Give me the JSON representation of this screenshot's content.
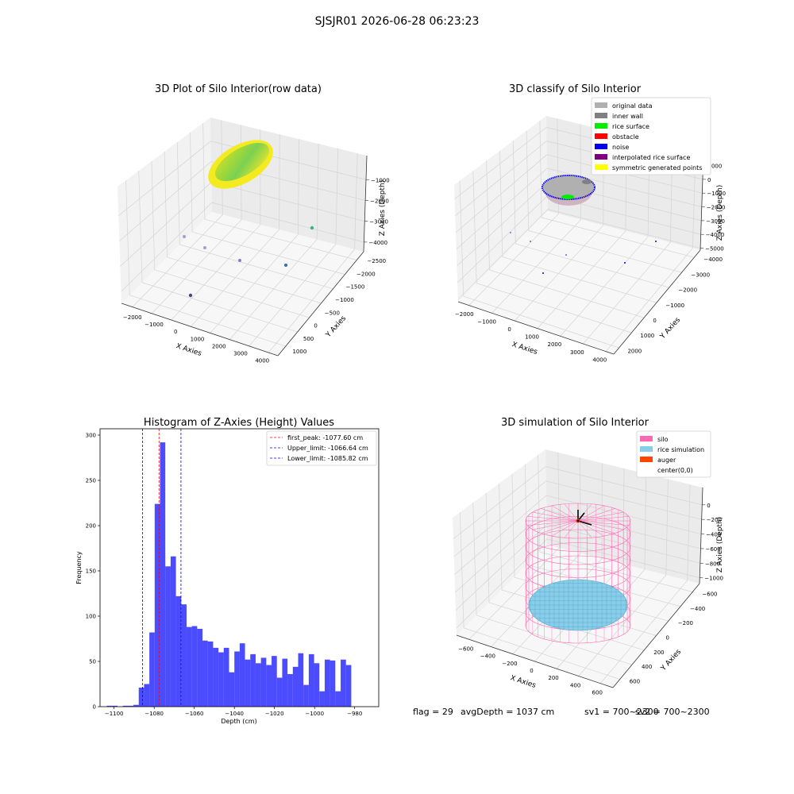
{
  "suptitle": "SJSJR01 2026-06-28 06:23:23",
  "footer": {
    "flag": "flag = 29",
    "avg": "avgDepth = 1037 cm",
    "sv1": "sv1 = 700~2300",
    "sv2": "sv2 = 700~2300"
  },
  "chart_data": [
    {
      "type": "scatter",
      "projection": "3d",
      "title": "3D Plot of Silo Interior(row data)",
      "xlabel": "X Axies",
      "ylabel": "Y Axies",
      "zlabel": "Z Axies (Depth)",
      "x_ticks": [
        "−2000",
        "−1000",
        "0",
        "1000",
        "2000",
        "3000",
        "4000"
      ],
      "y_ticks": [
        "−2500",
        "−2000",
        "−1500",
        "−1000",
        "−500",
        "0",
        "500",
        "1000"
      ],
      "z_ticks": [
        "−4000",
        "−3000",
        "−2000",
        "−1000"
      ],
      "colormap": "viridis"
    },
    {
      "type": "scatter",
      "projection": "3d",
      "title": "3D classify of Silo Interior",
      "xlabel": "X Axies",
      "ylabel": "Y Axies",
      "zlabel": "Z Axies (Depth)",
      "x_ticks": [
        "−2000",
        "−1000",
        "0",
        "1000",
        "2000",
        "3000",
        "4000"
      ],
      "y_ticks": [
        "−4000",
        "−3000",
        "−2000",
        "−1000",
        "0",
        "1000",
        "2000"
      ],
      "z_ticks": [
        "−5000",
        "−4000",
        "−3000",
        "−2000",
        "−1000",
        "0",
        "1000"
      ],
      "legend": [
        {
          "label": "original data",
          "color": "#b0b0b0"
        },
        {
          "label": "inner wall",
          "color": "#808080"
        },
        {
          "label": "rice surface",
          "color": "#00ee00"
        },
        {
          "label": "obstacle",
          "color": "#ff0000"
        },
        {
          "label": "noise",
          "color": "#0000ee"
        },
        {
          "label": "interpolated rice surface",
          "color": "#800080"
        },
        {
          "label": "symmetric generated points",
          "color": "#ffff00"
        }
      ],
      "legend_loc": "upper right"
    },
    {
      "type": "bar",
      "title": "Histogram of Z-Axies (Height) Values",
      "xlabel": "Depth (cm)",
      "ylabel": "Frequency",
      "xlim": [
        -1107,
        -968
      ],
      "ylim": [
        0,
        307
      ],
      "x_ticks": [
        -1100,
        -1080,
        -1060,
        -1040,
        -1020,
        -1000,
        -980
      ],
      "x_tick_labels": [
        "−1100",
        "−1080",
        "−1060",
        "−1040",
        "−1020",
        "−1000",
        "−980"
      ],
      "y_ticks": [
        0,
        50,
        100,
        150,
        200,
        250,
        300
      ],
      "bin_start": -1103.6,
      "bin_width": 2.65,
      "values": [
        1,
        1,
        0,
        1,
        1,
        2,
        21,
        25,
        82,
        224,
        292,
        155,
        166,
        122,
        113,
        88,
        89,
        86,
        73,
        72,
        65,
        60,
        65,
        38,
        61,
        70,
        52,
        58,
        48,
        54,
        46,
        56,
        32,
        53,
        36,
        44,
        59,
        24,
        58,
        48,
        17,
        52,
        51,
        17,
        52,
        46
      ],
      "bar_color": "#0000ff",
      "vlines": [
        {
          "label": "first_peak: -1077.60 cm",
          "x": -1077.6,
          "color": "#ff0000"
        },
        {
          "label": "Upper_limit: -1066.64 cm",
          "x": -1066.64,
          "color": "#0000ff"
        },
        {
          "label": "Lower_limit: -1085.82 cm",
          "x": -1085.82,
          "color": "#0000ff"
        }
      ],
      "legend_loc": "upper right"
    },
    {
      "type": "surface",
      "projection": "3d",
      "title": "3D simulation of Silo Interior",
      "xlabel": "X Axies",
      "ylabel": "Y Axies",
      "zlabel": "Z Axies (Depth)",
      "x_ticks": [
        "−600",
        "−400",
        "−200",
        "0",
        "200",
        "400",
        "600"
      ],
      "y_ticks": [
        "−600",
        "−400",
        "−200",
        "0",
        "200",
        "400",
        "600"
      ],
      "z_ticks": [
        "−1000",
        "−800",
        "−600",
        "−400",
        "−200",
        "0"
      ],
      "legend": [
        {
          "label": "silo",
          "color": "#ff69b4"
        },
        {
          "label": "rice simulation",
          "color": "#87ceeb"
        },
        {
          "label": "auger",
          "color": "#ff4500"
        },
        {
          "label": "center(0,0)",
          "color": ""
        }
      ],
      "legend_loc": "upper right"
    }
  ]
}
